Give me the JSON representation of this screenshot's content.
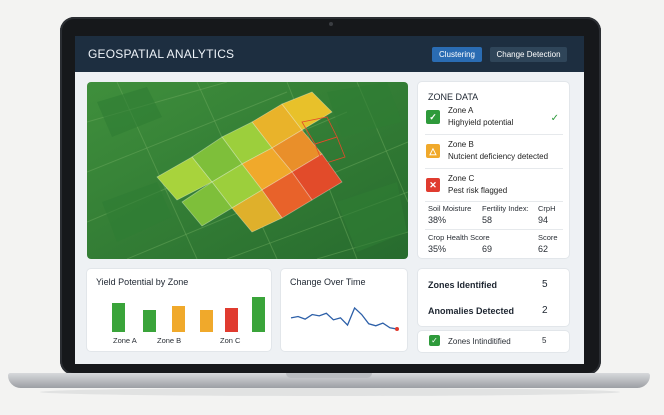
{
  "header": {
    "title": "GEOSPATIAL ANALYTICS",
    "buttons": [
      {
        "label": "Clustering",
        "active": true
      },
      {
        "label": "Change Detection",
        "active": false
      }
    ]
  },
  "map": {
    "alt": "Satellite view of farm fields with zone heat overlay",
    "legend_colors": {
      "high": "#5fbf3a",
      "medium": "#e9b32a",
      "low": "#e24b2a"
    }
  },
  "zone_data": {
    "title": "ZONE DATA",
    "zones": [
      {
        "name": "Zone A",
        "description": "Highyield potential",
        "badge": "✓",
        "color": "#2e9a3b",
        "check": "✓"
      },
      {
        "name": "Zone B",
        "description": "Nutcient deficiency detected",
        "badge": "△",
        "color": "#f0a92b"
      },
      {
        "name": "Zone C",
        "description": "Pest risk flagged",
        "badge": "✕",
        "color": "#e03b2f"
      }
    ],
    "metrics": [
      {
        "label": "Soil Moisture",
        "value": "38%"
      },
      {
        "label": "Fertility Index:",
        "value": "58"
      },
      {
        "label": "CrpH",
        "value": "94"
      },
      {
        "label": "Crop Health Score",
        "value": "35%"
      },
      {
        "label": "",
        "value": "69"
      },
      {
        "label": "Score",
        "value": "62"
      }
    ]
  },
  "yield_chart": {
    "title": "Yield Potential by Zone",
    "labels": [
      "Zone A",
      "Zone B",
      "Zon C"
    ]
  },
  "change_chart": {
    "title": "Change Over Time"
  },
  "stats": {
    "zones_identified": {
      "label": "Zones Identified",
      "value": "5"
    },
    "anomalies_detected": {
      "label": "Anomalies Detected",
      "value": "2"
    }
  },
  "bottom_row": {
    "label": "Zones Intinditified",
    "value": "5"
  },
  "chart_data": [
    {
      "type": "bar",
      "title": "Yield Potential by Zone",
      "categories": [
        "Zone A",
        "",
        "Zone B",
        "",
        "Zon C",
        ""
      ],
      "values": [
        0.82,
        0.62,
        0.75,
        0.62,
        0.68,
        1.0
      ],
      "colors": [
        "#3aa43a",
        "#3aa43a",
        "#f0a92b",
        "#f0a92b",
        "#e03b2f",
        "#3aa43a"
      ]
    },
    {
      "type": "line",
      "title": "Change Over Time",
      "x": [
        0,
        1,
        2,
        3,
        4,
        5,
        6,
        7,
        8,
        9,
        10,
        11,
        12,
        13,
        14,
        15
      ],
      "y": [
        0.52,
        0.56,
        0.48,
        0.62,
        0.58,
        0.66,
        0.46,
        0.52,
        0.3,
        0.82,
        0.62,
        0.34,
        0.28,
        0.36,
        0.22,
        0.18
      ],
      "series_color": "#2c5fa8",
      "end_marker_color": "#e03b2f"
    }
  ]
}
